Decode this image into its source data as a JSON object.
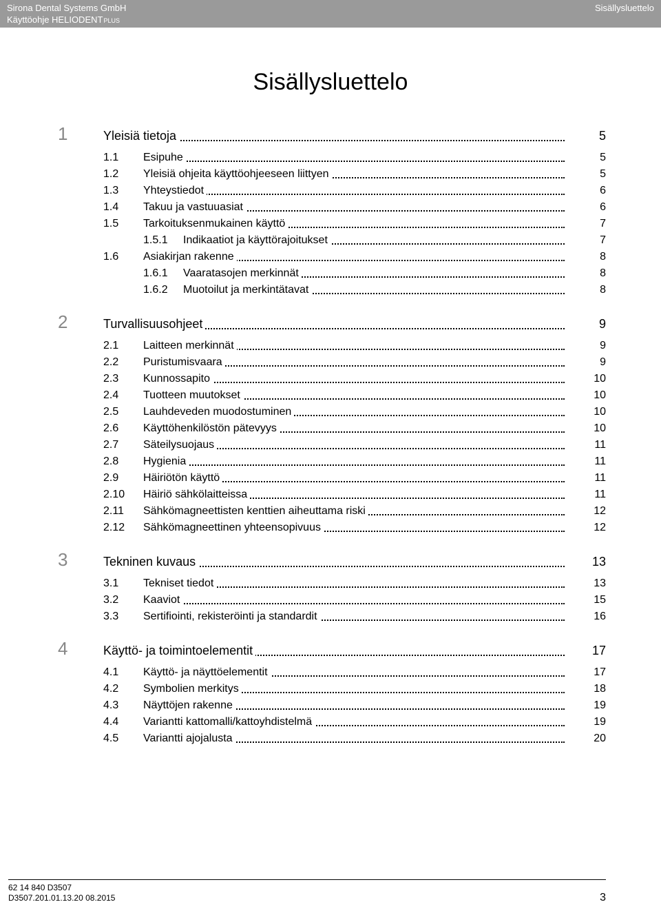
{
  "header": {
    "company": "Sirona Dental Systems GmbH",
    "doc_line_prefix": "Käyttöohje HELIODENT",
    "doc_line_sup": "PLUS",
    "right": "Sisällysluettelo"
  },
  "title": "Sisällysluettelo",
  "toc": [
    {
      "num": "1",
      "title": "Yleisiä tietoja",
      "page": "5",
      "children": [
        {
          "num": "1.1",
          "title": "Esipuhe",
          "page": "5"
        },
        {
          "num": "1.2",
          "title": "Yleisiä ohjeita käyttöohjeeseen liittyen",
          "page": "5"
        },
        {
          "num": "1.3",
          "title": "Yhteystiedot",
          "page": "6"
        },
        {
          "num": "1.4",
          "title": "Takuu ja vastuuasiat",
          "page": "6"
        },
        {
          "num": "1.5",
          "title": "Tarkoituksenmukainen käyttö",
          "page": "7",
          "children": [
            {
              "num": "1.5.1",
              "title": "Indikaatiot ja käyttörajoitukset",
              "page": "7"
            }
          ]
        },
        {
          "num": "1.6",
          "title": "Asiakirjan rakenne",
          "page": "8",
          "children": [
            {
              "num": "1.6.1",
              "title": "Vaaratasojen merkinnät",
              "page": "8"
            },
            {
              "num": "1.6.2",
              "title": "Muotoilut ja merkintätavat",
              "page": "8"
            }
          ]
        }
      ]
    },
    {
      "num": "2",
      "title": "Turvallisuusohjeet",
      "page": "9",
      "children": [
        {
          "num": "2.1",
          "title": "Laitteen merkinnät",
          "page": "9"
        },
        {
          "num": "2.2",
          "title": "Puristumisvaara",
          "page": "9"
        },
        {
          "num": "2.3",
          "title": "Kunnossapito",
          "page": "10"
        },
        {
          "num": "2.4",
          "title": "Tuotteen muutokset",
          "page": "10"
        },
        {
          "num": "2.5",
          "title": "Lauhdeveden muodostuminen",
          "page": "10"
        },
        {
          "num": "2.6",
          "title": "Käyttöhenkilöstön pätevyys",
          "page": "10"
        },
        {
          "num": "2.7",
          "title": "Säteilysuojaus",
          "page": "11"
        },
        {
          "num": "2.8",
          "title": "Hygienia",
          "page": "11"
        },
        {
          "num": "2.9",
          "title": "Häiriötön käyttö",
          "page": "11"
        },
        {
          "num": "2.10",
          "title": "Häiriö sähkölaitteissa",
          "page": "11"
        },
        {
          "num": "2.11",
          "title": "Sähkömagneettisten kenttien aiheuttama riski",
          "page": "12"
        },
        {
          "num": "2.12",
          "title": "Sähkömagneettinen yhteensopivuus",
          "page": "12"
        }
      ]
    },
    {
      "num": "3",
      "title": "Tekninen kuvaus",
      "page": "13",
      "children": [
        {
          "num": "3.1",
          "title": "Tekniset tiedot",
          "page": "13"
        },
        {
          "num": "3.2",
          "title": "Kaaviot",
          "page": "15"
        },
        {
          "num": "3.3",
          "title": "Sertifiointi, rekisteröinti ja standardit",
          "page": "16"
        }
      ]
    },
    {
      "num": "4",
      "title": "Käyttö- ja toimintoelementit",
      "page": "17",
      "children": [
        {
          "num": "4.1",
          "title": "Käyttö- ja näyttöelementit",
          "page": "17"
        },
        {
          "num": "4.2",
          "title": "Symbolien merkitys",
          "page": "18"
        },
        {
          "num": "4.3",
          "title": "Näyttöjen rakenne",
          "page": "19"
        },
        {
          "num": "4.4",
          "title": "Variantti kattomalli/kattoyhdistelmä",
          "page": "19"
        },
        {
          "num": "4.5",
          "title": "Variantti ajojalusta",
          "page": "20"
        }
      ]
    }
  ],
  "footer": {
    "line1": "62 14 840 D3507",
    "line2": "D3507.201.01.13.20    08.2015",
    "pagenum": "3"
  }
}
